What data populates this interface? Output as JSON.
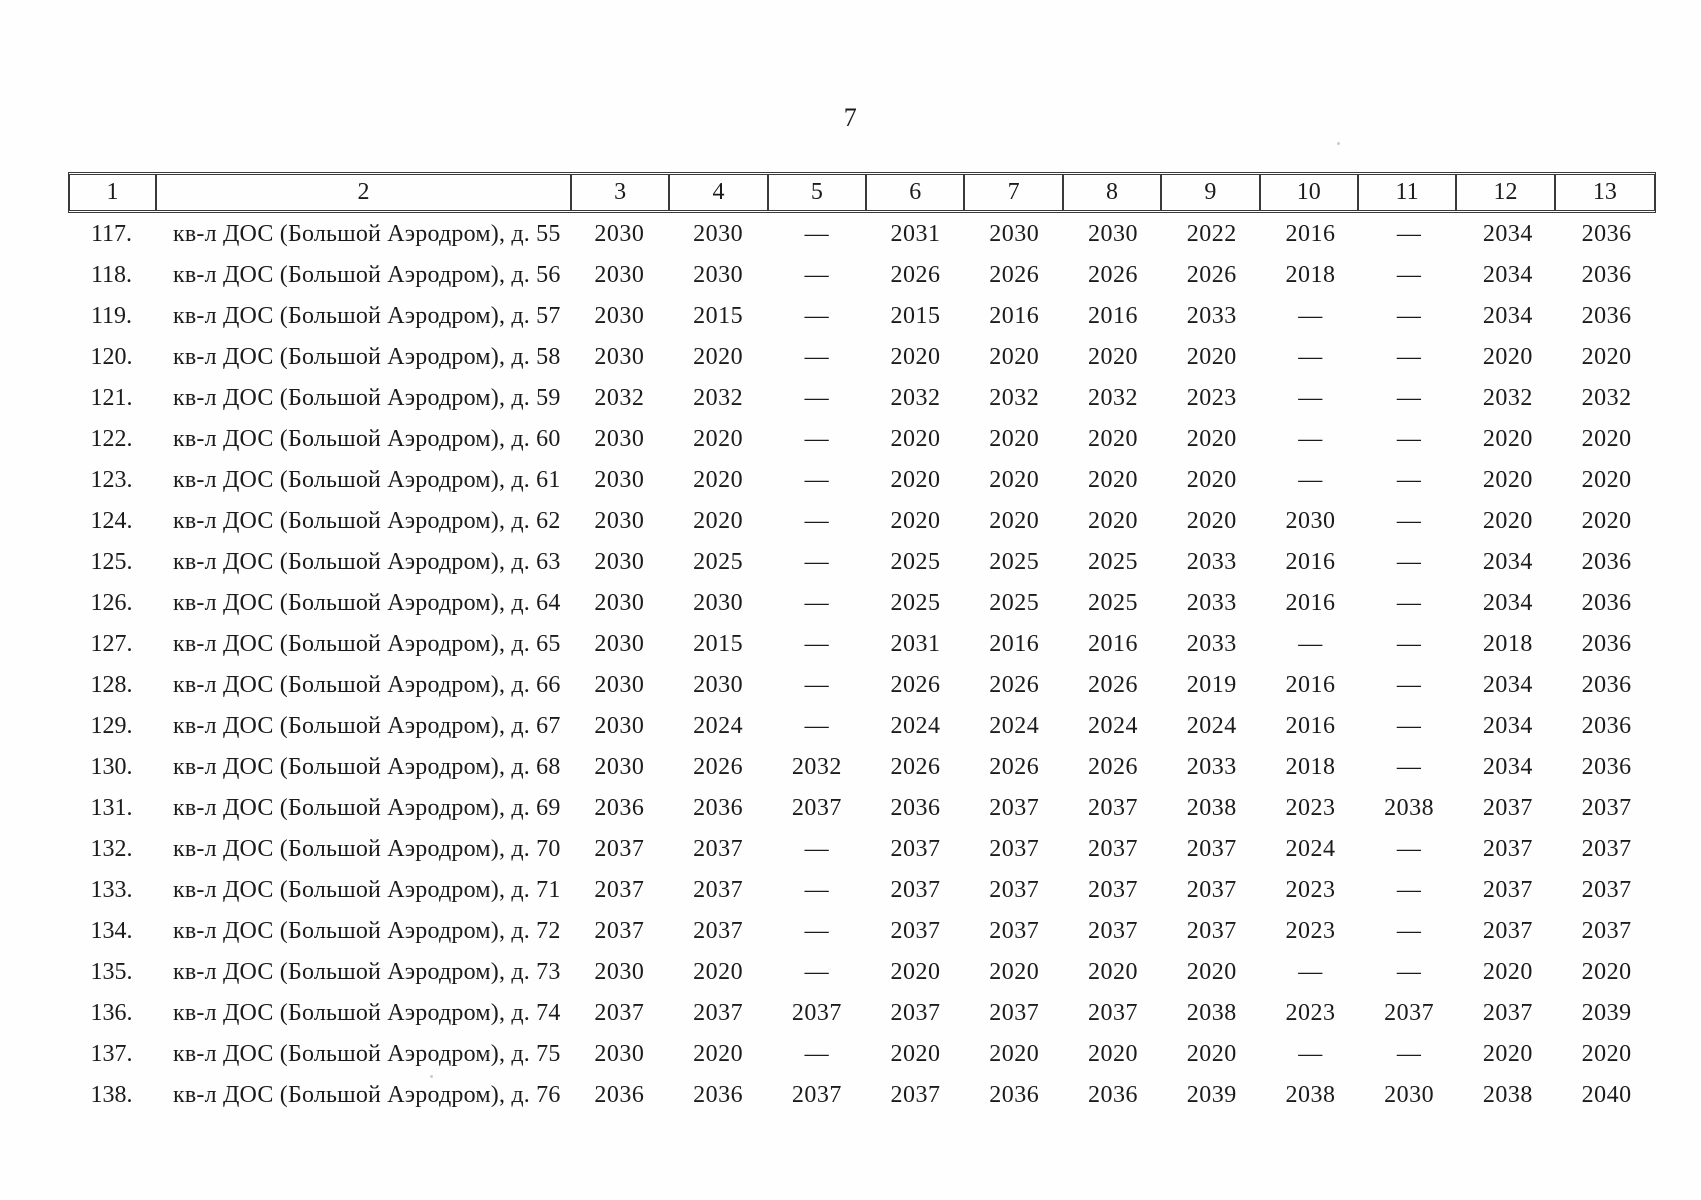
{
  "page": {
    "number": "7"
  },
  "table": {
    "headers": [
      "1",
      "2",
      "3",
      "4",
      "5",
      "6",
      "7",
      "8",
      "9",
      "10",
      "11",
      "12",
      "13"
    ],
    "rows": [
      {
        "num": "117.",
        "name": "кв-л ДОС (Большой Аэродром), д. 55",
        "values": [
          "2030",
          "2030",
          "—",
          "2031",
          "2030",
          "2030",
          "2022",
          "2016",
          "—",
          "2034",
          "2036"
        ]
      },
      {
        "num": "118.",
        "name": "кв-л ДОС (Большой Аэродром), д. 56",
        "values": [
          "2030",
          "2030",
          "—",
          "2026",
          "2026",
          "2026",
          "2026",
          "2018",
          "—",
          "2034",
          "2036"
        ]
      },
      {
        "num": "119.",
        "name": "кв-л ДОС (Большой Аэродром), д. 57",
        "values": [
          "2030",
          "2015",
          "—",
          "2015",
          "2016",
          "2016",
          "2033",
          "—",
          "—",
          "2034",
          "2036"
        ]
      },
      {
        "num": "120.",
        "name": "кв-л ДОС (Большой Аэродром), д. 58",
        "values": [
          "2030",
          "2020",
          "—",
          "2020",
          "2020",
          "2020",
          "2020",
          "—",
          "—",
          "2020",
          "2020"
        ]
      },
      {
        "num": "121.",
        "name": "кв-л ДОС (Большой Аэродром), д. 59",
        "values": [
          "2032",
          "2032",
          "—",
          "2032",
          "2032",
          "2032",
          "2023",
          "—",
          "—",
          "2032",
          "2032"
        ]
      },
      {
        "num": "122.",
        "name": "кв-л ДОС (Большой Аэродром), д. 60",
        "values": [
          "2030",
          "2020",
          "—",
          "2020",
          "2020",
          "2020",
          "2020",
          "—",
          "—",
          "2020",
          "2020"
        ]
      },
      {
        "num": "123.",
        "name": "кв-л ДОС (Большой Аэродром), д. 61",
        "values": [
          "2030",
          "2020",
          "—",
          "2020",
          "2020",
          "2020",
          "2020",
          "—",
          "—",
          "2020",
          "2020"
        ]
      },
      {
        "num": "124.",
        "name": "кв-л ДОС (Большой Аэродром), д. 62",
        "values": [
          "2030",
          "2020",
          "—",
          "2020",
          "2020",
          "2020",
          "2020",
          "2030",
          "—",
          "2020",
          "2020"
        ]
      },
      {
        "num": "125.",
        "name": "кв-л ДОС (Большой Аэродром), д. 63",
        "values": [
          "2030",
          "2025",
          "—",
          "2025",
          "2025",
          "2025",
          "2033",
          "2016",
          "—",
          "2034",
          "2036"
        ]
      },
      {
        "num": "126.",
        "name": "кв-л ДОС (Большой Аэродром), д. 64",
        "values": [
          "2030",
          "2030",
          "—",
          "2025",
          "2025",
          "2025",
          "2033",
          "2016",
          "—",
          "2034",
          "2036"
        ]
      },
      {
        "num": "127.",
        "name": "кв-л ДОС (Большой Аэродром), д. 65",
        "values": [
          "2030",
          "2015",
          "—",
          "2031",
          "2016",
          "2016",
          "2033",
          "—",
          "—",
          "2018",
          "2036"
        ]
      },
      {
        "num": "128.",
        "name": "кв-л ДОС (Большой Аэродром), д. 66",
        "values": [
          "2030",
          "2030",
          "—",
          "2026",
          "2026",
          "2026",
          "2019",
          "2016",
          "—",
          "2034",
          "2036"
        ]
      },
      {
        "num": "129.",
        "name": "кв-л ДОС (Большой Аэродром), д. 67",
        "values": [
          "2030",
          "2024",
          "—",
          "2024",
          "2024",
          "2024",
          "2024",
          "2016",
          "—",
          "2034",
          "2036"
        ]
      },
      {
        "num": "130.",
        "name": "кв-л ДОС (Большой Аэродром), д. 68",
        "values": [
          "2030",
          "2026",
          "2032",
          "2026",
          "2026",
          "2026",
          "2033",
          "2018",
          "—",
          "2034",
          "2036"
        ]
      },
      {
        "num": "131.",
        "name": "кв-л ДОС (Большой Аэродром), д. 69",
        "values": [
          "2036",
          "2036",
          "2037",
          "2036",
          "2037",
          "2037",
          "2038",
          "2023",
          "2038",
          "2037",
          "2037"
        ]
      },
      {
        "num": "132.",
        "name": "кв-л ДОС (Большой Аэродром), д. 70",
        "values": [
          "2037",
          "2037",
          "—",
          "2037",
          "2037",
          "2037",
          "2037",
          "2024",
          "—",
          "2037",
          "2037"
        ]
      },
      {
        "num": "133.",
        "name": "кв-л ДОС (Большой Аэродром), д. 71",
        "values": [
          "2037",
          "2037",
          "—",
          "2037",
          "2037",
          "2037",
          "2037",
          "2023",
          "—",
          "2037",
          "2037"
        ]
      },
      {
        "num": "134.",
        "name": "кв-л ДОС (Большой Аэродром), д. 72",
        "values": [
          "2037",
          "2037",
          "—",
          "2037",
          "2037",
          "2037",
          "2037",
          "2023",
          "—",
          "2037",
          "2037"
        ]
      },
      {
        "num": "135.",
        "name": "кв-л ДОС (Большой Аэродром), д. 73",
        "values": [
          "2030",
          "2020",
          "—",
          "2020",
          "2020",
          "2020",
          "2020",
          "—",
          "—",
          "2020",
          "2020"
        ]
      },
      {
        "num": "136.",
        "name": "кв-л ДОС (Большой Аэродром), д. 74",
        "values": [
          "2037",
          "2037",
          "2037",
          "2037",
          "2037",
          "2037",
          "2038",
          "2023",
          "2037",
          "2037",
          "2039"
        ]
      },
      {
        "num": "137.",
        "name": "кв-л ДОС (Большой Аэродром), д. 75",
        "values": [
          "2030",
          "2020",
          "—",
          "2020",
          "2020",
          "2020",
          "2020",
          "—",
          "—",
          "2020",
          "2020"
        ]
      },
      {
        "num": "138.",
        "name": "кв-л ДОС (Большой Аэродром), д. 76",
        "values": [
          "2036",
          "2036",
          "2037",
          "2037",
          "2036",
          "2036",
          "2039",
          "2038",
          "2030",
          "2038",
          "2040"
        ]
      }
    ]
  }
}
